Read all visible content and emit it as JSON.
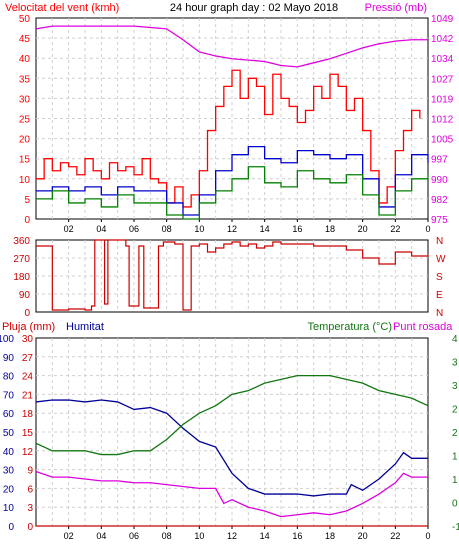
{
  "header": {
    "title": "24 hour graph day : 02 Mayo 2018",
    "wind_label": "Velocitat del vent (kmh)",
    "pressure_label": "Pressió (mb)",
    "rain_label": "Pluja (mm)",
    "humidity_label": "Humitat",
    "temperature_label": "Temperatura (°C)",
    "dewpoint_label": "Punt rosada"
  },
  "colors": {
    "wind_gust": "#ff0000",
    "wind_avg": "#0000cc",
    "wind_green": "#008000",
    "pressure": "#e000e0",
    "direction": "#cc0000",
    "humidity": "#000099",
    "temperature": "#117711",
    "dewpoint": "#dd00dd",
    "rain": "#cc0000",
    "grid": "#cfcfcf"
  },
  "chart_data": [
    {
      "type": "line",
      "title": "24 hour graph day : 02 Mayo 2018",
      "x_ticks": [
        "02",
        "04",
        "06",
        "08",
        "10",
        "12",
        "14",
        "16",
        "18",
        "20",
        "22",
        "0"
      ],
      "x_range": [
        0,
        24
      ],
      "ylabel": "Velocitat del vent (kmh)",
      "ylim": [
        0,
        50
      ],
      "y_ticks": [
        "0",
        "5",
        "10",
        "15",
        "20",
        "25",
        "30",
        "35",
        "40",
        "45",
        "50"
      ],
      "ylabel_right": "Pressió (mb)",
      "ylim_right": [
        975,
        1049
      ],
      "y_ticks_right": [
        "975",
        "982",
        "990",
        "997",
        "1005",
        "1012",
        "1019",
        "1027",
        "1034",
        "1042",
        "1049"
      ],
      "grid": true,
      "series": [
        {
          "name": "Velocitat del vent (kmh)",
          "axis": "left",
          "color": "#ff0000",
          "x": [
            0,
            0.5,
            1,
            1.5,
            2,
            2.5,
            3,
            3.5,
            4,
            4.5,
            5,
            5.5,
            6,
            6.5,
            7,
            7.5,
            8,
            8.5,
            9,
            9.5,
            10,
            10.5,
            11,
            11.5,
            12,
            12.5,
            13,
            13.5,
            14,
            14.5,
            15,
            15.5,
            16,
            16.5,
            17,
            17.5,
            18,
            18.5,
            19,
            19.5,
            20,
            20.5,
            21,
            21.5,
            22,
            22.5,
            23,
            23.5
          ],
          "values": [
            10,
            15,
            12,
            14,
            13,
            11,
            15,
            12,
            10,
            14,
            12,
            13,
            11,
            15,
            10,
            9,
            4,
            8,
            3,
            6,
            12,
            22,
            28,
            33,
            37,
            30,
            35,
            33,
            26,
            36,
            30,
            28,
            24,
            27,
            33,
            30,
            36,
            33,
            27,
            30,
            22,
            12,
            4,
            8,
            17,
            22,
            27,
            25
          ]
        },
        {
          "name": "Pressió (mb)",
          "axis": "right",
          "color": "#e000e0",
          "x": [
            0,
            1,
            2,
            3,
            4,
            5,
            6,
            7,
            8,
            9,
            10,
            11,
            12,
            13,
            14,
            15,
            16,
            17,
            18,
            19,
            20,
            21,
            22,
            23,
            24
          ],
          "values": [
            1045,
            1046,
            1046,
            1046,
            1046,
            1046,
            1046,
            1045.5,
            1045,
            1041,
            1036.5,
            1035,
            1034,
            1033.5,
            1033,
            1031.5,
            1031,
            1032.5,
            1034,
            1036,
            1038,
            1039.5,
            1040.5,
            1041,
            1041
          ]
        },
        {
          "name": "",
          "axis": "left",
          "color": "#0000cc",
          "x": [
            0,
            1,
            2,
            3,
            4,
            5,
            6,
            7,
            8,
            9,
            10,
            11,
            12,
            13,
            14,
            15,
            16,
            17,
            18,
            19,
            20,
            21,
            22,
            23,
            24
          ],
          "values": [
            7,
            8,
            7,
            8,
            6,
            8,
            7,
            7,
            4,
            1,
            6,
            12,
            16,
            18,
            15,
            14,
            17,
            16,
            15,
            16,
            10,
            3,
            11,
            16,
            14
          ]
        },
        {
          "name": "",
          "axis": "left",
          "color": "#008000",
          "x": [
            0,
            1,
            2,
            3,
            4,
            5,
            6,
            7,
            8,
            9,
            10,
            11,
            12,
            13,
            14,
            15,
            16,
            17,
            18,
            19,
            20,
            21,
            22,
            23,
            24
          ],
          "values": [
            5,
            7,
            4,
            5,
            3,
            6,
            4,
            4,
            1,
            0,
            4,
            7,
            10,
            13,
            9,
            8,
            12,
            10,
            9,
            11,
            6,
            1,
            7,
            10,
            11
          ]
        }
      ]
    },
    {
      "type": "line",
      "title": "",
      "ylim": [
        0,
        360
      ],
      "y_ticks": [
        "0",
        "90",
        "180",
        "270",
        "360"
      ],
      "y_ticks_right": [
        "N",
        "E",
        "S",
        "W",
        "N"
      ],
      "grid": true,
      "series": [
        {
          "name": "",
          "color": "#cc0000",
          "x": [
            0,
            0.9,
            1,
            2,
            3,
            3.4,
            3.6,
            4.2,
            4.4,
            5.5,
            5.7,
            6.3,
            6.6,
            7.5,
            7.8,
            8.5,
            9,
            9.5,
            10,
            10.5,
            11,
            11.5,
            12,
            12.5,
            13,
            13.5,
            14,
            14.5,
            15,
            16,
            17,
            18,
            19,
            20,
            21,
            22,
            23,
            24
          ],
          "values": [
            330,
            330,
            10,
            15,
            10,
            30,
            360,
            40,
            360,
            330,
            30,
            330,
            20,
            330,
            350,
            340,
            10,
            330,
            340,
            300,
            320,
            340,
            350,
            330,
            340,
            320,
            330,
            350,
            340,
            340,
            330,
            330,
            310,
            270,
            240,
            300,
            280,
            290
          ]
        }
      ]
    },
    {
      "type": "line",
      "title": "",
      "ylabel": "Pluja (mm)",
      "ylim": [
        0,
        100
      ],
      "y_ticks_rain": [
        "0",
        "3",
        "6",
        "9",
        "12",
        "15",
        "18",
        "21",
        "24",
        "27",
        "30"
      ],
      "y_ticks_humidity": [
        "0",
        "10",
        "20",
        "30",
        "40",
        "50",
        "60",
        "70",
        "80",
        "90",
        "100"
      ],
      "ylabel_right": "Temperatura (°C)",
      "ylim_right": [
        -1,
        4
      ],
      "y_ticks_right": [
        "-1",
        "0",
        "1",
        "1",
        "2",
        "2",
        "3",
        "3",
        "4"
      ],
      "grid": true,
      "series": [
        {
          "name": "Humitat",
          "color": "#000099",
          "x": [
            0,
            1,
            2,
            3,
            4,
            5,
            6,
            7,
            8,
            9,
            10,
            11,
            12,
            13,
            14,
            15,
            16,
            17,
            18,
            19,
            19.3,
            20,
            21,
            22,
            22.5,
            23,
            24
          ],
          "values": [
            66,
            67,
            67,
            66,
            67,
            66,
            62,
            63,
            60,
            52,
            45,
            42,
            28,
            20,
            17,
            17,
            17,
            16,
            17,
            17,
            22,
            19,
            25,
            33,
            39,
            36,
            36
          ]
        },
        {
          "name": "Temperatura (°C)",
          "color": "#117711",
          "x": [
            0,
            1,
            2,
            3,
            4,
            5,
            6,
            7,
            8,
            9,
            10,
            11,
            12,
            13,
            14,
            15,
            16,
            17,
            18,
            19,
            20,
            21,
            22,
            23,
            24
          ],
          "values": [
            1.2,
            1.0,
            1.0,
            1.0,
            0.9,
            0.9,
            1.0,
            1.0,
            1.3,
            1.7,
            2.0,
            2.2,
            2.5,
            2.6,
            2.8,
            2.9,
            3.0,
            3.0,
            3.0,
            2.9,
            2.8,
            2.6,
            2.5,
            2.4,
            2.2
          ]
        },
        {
          "name": "Punt rosada",
          "color": "#dd00dd",
          "x": [
            0,
            1,
            2,
            3,
            4,
            5,
            6,
            7,
            8,
            9,
            10,
            11,
            11.5,
            12,
            13,
            14,
            15,
            16,
            17,
            18,
            19,
            20,
            21,
            22,
            22.5,
            23,
            24
          ],
          "values": [
            29,
            26,
            26,
            25,
            24,
            24,
            23,
            23,
            22,
            21,
            20,
            20,
            12,
            14,
            10,
            8,
            5,
            6,
            7,
            6,
            8,
            12,
            17,
            23,
            28,
            26,
            26
          ]
        },
        {
          "name": "Pluja (mm)",
          "color": "#cc0000",
          "x": [
            0,
            24
          ],
          "values": [
            0,
            0
          ]
        }
      ]
    }
  ]
}
